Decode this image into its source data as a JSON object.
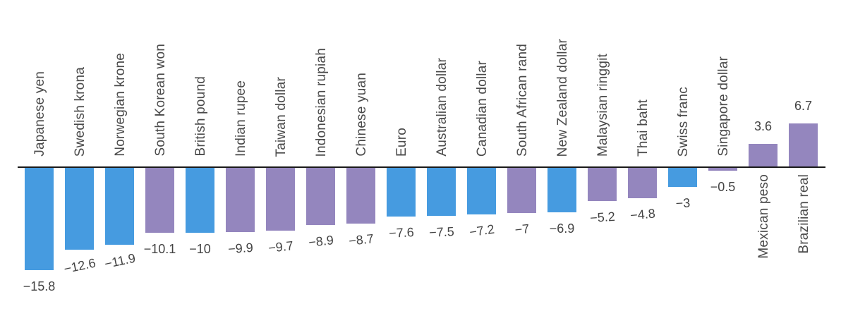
{
  "chart_data": {
    "type": "bar",
    "title": "",
    "categories": [
      "Japanese yen",
      "Swedish krona",
      "Norwegian krone",
      "South Korean won",
      "British pound",
      "Indian rupee",
      "Taiwan dollar",
      "Indonesian rupiah",
      "Chinese yuan",
      "Euro",
      "Australian dollar",
      "Canadian dollar",
      "South African rand",
      "New Zealand dollar",
      "Malaysian ringgit",
      "Thai baht",
      "Swiss franc",
      "Singapore dollar",
      "Mexican peso",
      "Brazilian real"
    ],
    "values": [
      -15.8,
      -12.6,
      -11.9,
      -10.1,
      -10,
      -9.9,
      -9.7,
      -8.9,
      -8.7,
      -7.6,
      -7.5,
      -7.2,
      -7,
      -6.9,
      -5.2,
      -4.8,
      -3,
      -0.5,
      3.6,
      6.7
    ],
    "value_labels": [
      "−15.8",
      "−12.6",
      "−11.9",
      "−10.1",
      "−10",
      "−9.9",
      "−9.7",
      "−8.9",
      "−8.7",
      "−7.6",
      "−7.5",
      "−7.2",
      "−7",
      "−6.9",
      "−5.2",
      "−4.8",
      "−3",
      "−0.5",
      "3.6",
      "6.7"
    ],
    "bar_colors": [
      "blue",
      "blue",
      "blue",
      "purple",
      "blue",
      "purple",
      "purple",
      "purple",
      "purple",
      "blue",
      "blue",
      "blue",
      "purple",
      "blue",
      "purple",
      "purple",
      "blue",
      "purple",
      "purple",
      "purple"
    ],
    "value_label_tilts_deg_ccw": [
      0,
      12,
      12,
      0,
      0,
      4,
      6,
      6,
      6,
      3,
      3,
      8,
      6,
      0,
      4,
      5,
      3,
      0,
      0,
      0
    ],
    "palette": {
      "blue": "#469BE0",
      "purple": "#9486BE"
    },
    "axis_color": "#1a1a1a",
    "label_color": "#4a4a4a",
    "value_color": "#434343",
    "ylim": [
      -15.8,
      6.7
    ],
    "baseline": 0,
    "grid": false,
    "legend": false,
    "xlabel": "",
    "ylabel": ""
  }
}
